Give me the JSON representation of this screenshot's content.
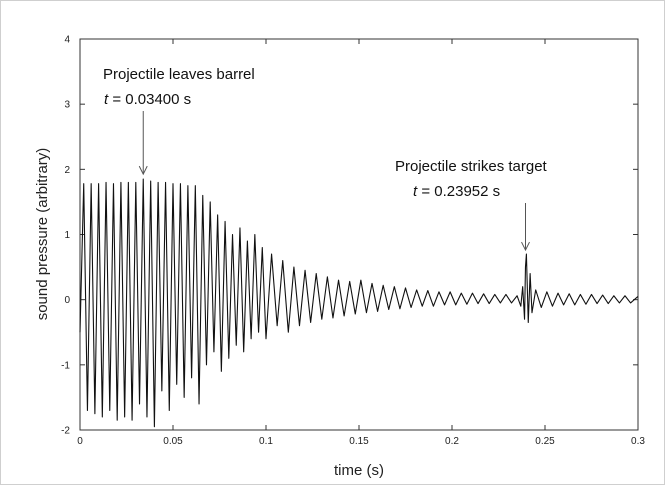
{
  "chart_data": {
    "type": "line",
    "title": "",
    "xlabel": "time (s)",
    "ylabel": "sound pressure (arbitrary)",
    "xlim": [
      0,
      0.3
    ],
    "ylim": [
      -2,
      4
    ],
    "x_ticks": [
      "0",
      "0.05",
      "0.1",
      "0.15",
      "0.2",
      "0.25",
      "0.3"
    ],
    "y_ticks": [
      "-2",
      "-1",
      "0",
      "1",
      "2",
      "3",
      "4"
    ],
    "grid": false,
    "series": [
      {
        "color": "#111111",
        "x": [
          0,
          0.002,
          0.004,
          0.006,
          0.008,
          0.01,
          0.012,
          0.014,
          0.016,
          0.018,
          0.02,
          0.022,
          0.024,
          0.026,
          0.028,
          0.03,
          0.032,
          0.034,
          0.036,
          0.038,
          0.04,
          0.042,
          0.044,
          0.046,
          0.048,
          0.05,
          0.052,
          0.054,
          0.056,
          0.058,
          0.06,
          0.062,
          0.064,
          0.066,
          0.068,
          0.07,
          0.072,
          0.074,
          0.076,
          0.078,
          0.08,
          0.082,
          0.084,
          0.086,
          0.088,
          0.09,
          0.092,
          0.094,
          0.096,
          0.098,
          0.1,
          0.103,
          0.106,
          0.109,
          0.112,
          0.115,
          0.118,
          0.121,
          0.124,
          0.127,
          0.13,
          0.133,
          0.136,
          0.139,
          0.142,
          0.145,
          0.148,
          0.151,
          0.154,
          0.157,
          0.16,
          0.163,
          0.166,
          0.169,
          0.172,
          0.175,
          0.178,
          0.181,
          0.184,
          0.187,
          0.19,
          0.193,
          0.196,
          0.199,
          0.202,
          0.205,
          0.208,
          0.211,
          0.214,
          0.217,
          0.22,
          0.223,
          0.226,
          0.229,
          0.232,
          0.235,
          0.237,
          0.238,
          0.239,
          0.2395,
          0.24,
          0.241,
          0.242,
          0.243,
          0.245,
          0.248,
          0.251,
          0.254,
          0.257,
          0.26,
          0.263,
          0.266,
          0.269,
          0.272,
          0.275,
          0.278,
          0.281,
          0.284,
          0.287,
          0.29,
          0.293,
          0.296,
          0.3
        ],
        "y": [
          -0.5,
          1.78,
          -1.7,
          1.78,
          -1.75,
          1.78,
          -1.8,
          1.8,
          -1.7,
          1.78,
          -1.85,
          1.8,
          -1.8,
          1.8,
          -1.85,
          1.8,
          -1.6,
          1.85,
          -1.8,
          1.82,
          -1.95,
          1.8,
          -1.4,
          1.8,
          -1.7,
          1.78,
          -1.3,
          1.78,
          -1.5,
          1.75,
          -1.2,
          1.75,
          -1.6,
          1.6,
          -1.0,
          1.5,
          -0.8,
          1.3,
          -1.1,
          1.2,
          -0.9,
          1.0,
          -0.7,
          1.1,
          -0.8,
          0.9,
          -0.6,
          1.0,
          -0.5,
          0.8,
          -0.6,
          0.7,
          -0.4,
          0.6,
          -0.5,
          0.5,
          -0.4,
          0.45,
          -0.35,
          0.4,
          -0.3,
          0.35,
          -0.28,
          0.3,
          -0.25,
          0.28,
          -0.22,
          0.3,
          -0.2,
          0.25,
          -0.18,
          0.22,
          -0.15,
          0.2,
          -0.14,
          0.18,
          -0.12,
          0.15,
          -0.1,
          0.14,
          -0.1,
          0.12,
          -0.08,
          0.12,
          -0.08,
          0.1,
          -0.07,
          0.1,
          -0.06,
          0.09,
          -0.06,
          0.08,
          -0.05,
          0.08,
          -0.05,
          0.06,
          -0.1,
          0.2,
          -0.3,
          0.5,
          0.7,
          -0.35,
          0.4,
          -0.2,
          0.15,
          -0.12,
          0.12,
          -0.1,
          0.1,
          -0.08,
          0.09,
          -0.08,
          0.08,
          -0.07,
          0.08,
          -0.06,
          0.07,
          -0.06,
          0.06,
          -0.05,
          0.06,
          -0.05,
          0.05
        ]
      }
    ],
    "annotations": [
      {
        "text": "Projectile leaves barrel",
        "t_label": "t",
        "t_value": "= 0.03400 s",
        "x": 0.034,
        "y": 1.85
      },
      {
        "text": "Projectile strikes target",
        "t_label": "t",
        "t_value": "= 0.23952 s",
        "x": 0.23952,
        "y": 0.7
      }
    ]
  }
}
